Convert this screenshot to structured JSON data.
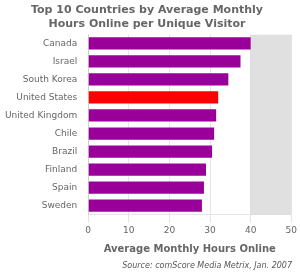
{
  "chart_data": {
    "type": "bar",
    "orientation": "horizontal",
    "title": "Top 10 Countries by Average Monthly\nHours Online per Unique Visitor",
    "categories": [
      "Canada",
      "Israel",
      "South Korea",
      "United States",
      "United Kingdom",
      "Chile",
      "Brazil",
      "Finland",
      "Spain",
      "Sweden"
    ],
    "values": [
      40,
      37.5,
      34.5,
      32,
      31.5,
      31,
      30.5,
      29,
      28.5,
      28
    ],
    "colors": [
      "#990099",
      "#990099",
      "#990099",
      "#ff0000",
      "#990099",
      "#990099",
      "#990099",
      "#990099",
      "#990099",
      "#990099"
    ],
    "xlabel": "Average Monthly Hours Online",
    "xlim": [
      0,
      50
    ],
    "xticks": [
      0,
      10,
      20,
      30,
      40,
      50
    ],
    "shaded_range": [
      40,
      50
    ],
    "annotation": "Source: comScore Media Metrix, Jan. 2007",
    "grid": true
  }
}
